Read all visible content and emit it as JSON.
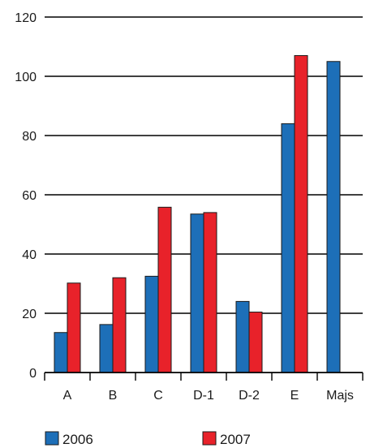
{
  "chart_data": {
    "type": "bar",
    "categories": [
      "A",
      "B",
      "C",
      "D-1",
      "D-2",
      "E",
      "Majs"
    ],
    "series": [
      {
        "name": "2006",
        "values": [
          13.5,
          16.2,
          32.5,
          53.5,
          24.0,
          84.0,
          105.0
        ],
        "color": "#1d6fb8"
      },
      {
        "name": "2007",
        "values": [
          30.2,
          32.0,
          55.8,
          54.0,
          20.4,
          107.0,
          null
        ],
        "color": "#e8222a"
      }
    ],
    "ylim": [
      0,
      120
    ],
    "yticks": [
      "0",
      "20",
      "40",
      "60",
      "80",
      "100",
      "120"
    ],
    "grid": true,
    "legend_position": "bottom"
  }
}
